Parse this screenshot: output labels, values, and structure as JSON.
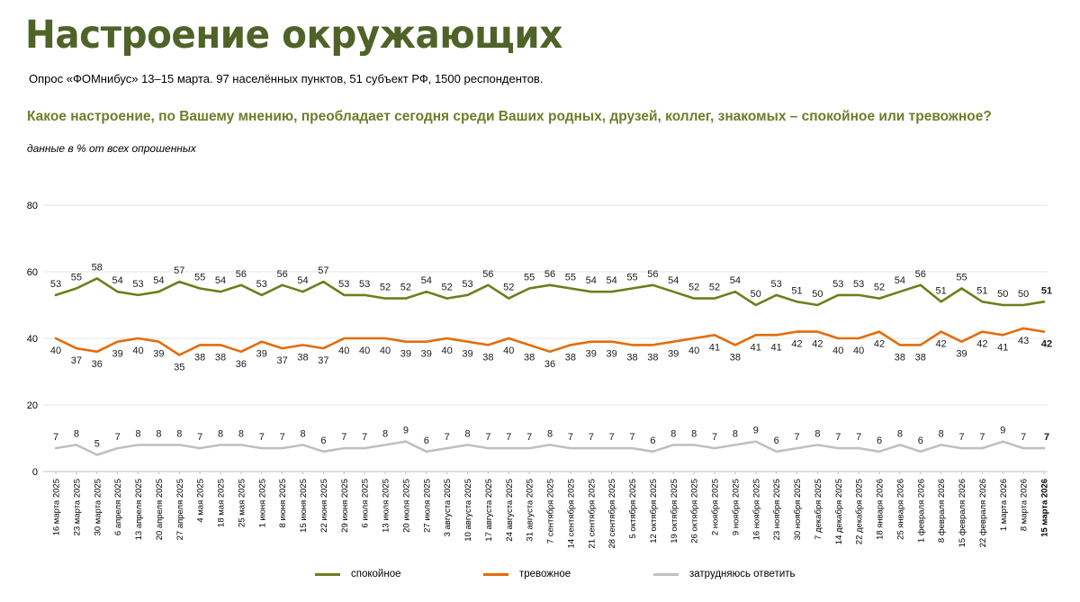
{
  "header": {
    "title": "Настроение окружающих",
    "subtitle": "Опрос «ФОМнибус» 13–15 марта. 97 населённых пунктов, 51 субъект РФ, 1500 респондентов.",
    "question": "Какое настроение, по Вашему мнению, преобладает сегодня среди Ваших родных, друзей, коллег, знакомых – спокойное или тревожное?",
    "note": "данные в % от всех опрошенных"
  },
  "chart_data": {
    "type": "line",
    "x": [
      "16 марта 2025",
      "23 марта 2025",
      "30 марта 2025",
      "6 апреля 2025",
      "13 апреля 2025",
      "20 апреля 2025",
      "27 апреля 2025",
      "4 мая 2025",
      "18 мая 2025",
      "25 мая 2025",
      "1 июня 2025",
      "8 июня 2025",
      "15 июня 2025",
      "22 июня 2025",
      "29 июня 2025",
      "6 июля 2025",
      "13 июля 2025",
      "20 июля 2025",
      "27 июля 2025",
      "3 августа 2025",
      "10 августа 2025",
      "17 августа 2025",
      "24 августа 2025",
      "31 августа 2025",
      "7 сентября 2025",
      "14 сентября 2025",
      "21 сентября 2025",
      "28 сентября 2025",
      "5 октября 2025",
      "12 октября 2025",
      "19 октября 2025",
      "26 октября 2025",
      "2 ноября 2025",
      "9 ноября 2025",
      "16 ноября 2025",
      "23 ноября 2025",
      "30 ноября 2025",
      "7 декабря 2025",
      "14 декабря 2025",
      "22 декабря 2025",
      "18 января 2026",
      "25 января 2026",
      "1 февраля 2026",
      "8 февраля 2026",
      "15 февраля 2026",
      "22 февраля 2026",
      "1 марта 2026",
      "8 марта 2026",
      "15 марта 2026"
    ],
    "ylim": [
      0,
      80
    ],
    "yticks": [
      0,
      20,
      40,
      60,
      80
    ],
    "grid": "horizontal",
    "legend_position": "bottom",
    "series": [
      {
        "name": "спокойное",
        "color": "#6f7d1c",
        "values": [
          53,
          55,
          58,
          54,
          53,
          54,
          57,
          55,
          54,
          56,
          53,
          56,
          54,
          57,
          53,
          53,
          52,
          52,
          54,
          52,
          53,
          56,
          52,
          55,
          56,
          55,
          54,
          54,
          55,
          56,
          54,
          52,
          52,
          54,
          50,
          53,
          51,
          50,
          53,
          53,
          52,
          54,
          56,
          51,
          55,
          51,
          50,
          50,
          51
        ]
      },
      {
        "name": "тревожное",
        "color": "#e46c0a",
        "values": [
          40,
          37,
          36,
          39,
          40,
          39,
          35,
          38,
          38,
          36,
          39,
          37,
          38,
          37,
          40,
          40,
          40,
          39,
          39,
          40,
          39,
          38,
          40,
          38,
          36,
          38,
          39,
          39,
          38,
          38,
          39,
          40,
          41,
          38,
          41,
          41,
          42,
          42,
          40,
          40,
          42,
          38,
          38,
          42,
          39,
          42,
          41,
          43,
          42
        ]
      },
      {
        "name": "затрудняюсь ответить",
        "color": "#c0c0c0",
        "values": [
          7,
          8,
          5,
          7,
          8,
          8,
          8,
          7,
          8,
          8,
          7,
          7,
          8,
          6,
          7,
          7,
          8,
          9,
          6,
          7,
          8,
          7,
          7,
          7,
          8,
          7,
          7,
          7,
          7,
          6,
          8,
          8,
          7,
          8,
          9,
          6,
          7,
          8,
          7,
          7,
          6,
          8,
          6,
          8,
          7,
          7,
          9,
          7,
          7
        ]
      }
    ]
  }
}
